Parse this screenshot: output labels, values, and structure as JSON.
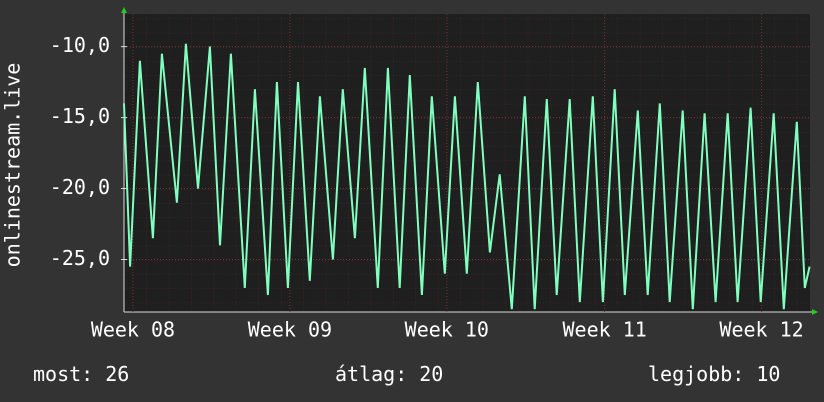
{
  "chart_data": {
    "type": "line",
    "y_label": "onlinestream.live",
    "color": "#80ffbf",
    "grid": true,
    "xlim": [
      0,
      30.6
    ],
    "ylim": [
      -28.7,
      -7.7
    ],
    "xticks": [
      {
        "value": 0.4,
        "label": "Week 08"
      },
      {
        "value": 7.4,
        "label": "Week 09"
      },
      {
        "value": 14.4,
        "label": "Week 10"
      },
      {
        "value": 21.44,
        "label": "Week 11"
      },
      {
        "value": 28.44,
        "label": "Week 12"
      }
    ],
    "yticks": [
      {
        "value": -10,
        "label": "-10,0"
      },
      {
        "value": -15,
        "label": "-15,0"
      },
      {
        "value": -20,
        "label": "-20,0"
      },
      {
        "value": -25,
        "label": "-25,0"
      }
    ],
    "x": [
      0,
      0.27,
      0.71,
      1.29,
      1.69,
      2.36,
      2.76,
      3.3,
      3.83,
      4.28,
      4.77,
      5.39,
      5.84,
      6.42,
      6.82,
      7.31,
      7.76,
      8.29,
      8.74,
      9.32,
      9.76,
      10.3,
      10.74,
      11.32,
      11.77,
      12.3,
      12.75,
      13.29,
      13.73,
      14.31,
      14.76,
      15.29,
      15.78,
      16.32,
      16.76,
      17.3,
      17.88,
      18.32,
      18.86,
      19.3,
      19.88,
      20.33,
      20.91,
      21.36,
      21.89,
      22.34,
      22.92,
      23.36,
      23.9,
      24.34,
      24.92,
      25.37,
      25.9,
      26.39,
      26.93,
      27.37,
      27.95,
      28.4,
      28.98,
      29.43,
      30.01,
      30.37,
      30.58
    ],
    "values": [
      -14,
      -25.5,
      -11,
      -23.5,
      -10.5,
      -21,
      -9.8,
      -20,
      -10,
      -24,
      -10.5,
      -27,
      -13,
      -27.5,
      -12.5,
      -27,
      -12.5,
      -26.5,
      -13.5,
      -25,
      -13,
      -23.5,
      -11.5,
      -27,
      -11.5,
      -27,
      -12,
      -27.5,
      -13.5,
      -26,
      -13.5,
      -26,
      -12.5,
      -24.5,
      -19,
      -28.5,
      -13.5,
      -28.5,
      -13.7,
      -27.5,
      -13.7,
      -28,
      -13.5,
      -28,
      -13,
      -27.5,
      -14.5,
      -27.5,
      -14,
      -28,
      -14.5,
      -28.5,
      -14.7,
      -28,
      -14.7,
      -28,
      -14.3,
      -28,
      -14.7,
      -28.5,
      -15.3,
      -27,
      -25.5
    ],
    "stats": [
      {
        "label": "most:",
        "value": 26
      },
      {
        "label": "átlag:",
        "value": 20
      },
      {
        "label": "legjobb:",
        "value": 10
      }
    ]
  }
}
